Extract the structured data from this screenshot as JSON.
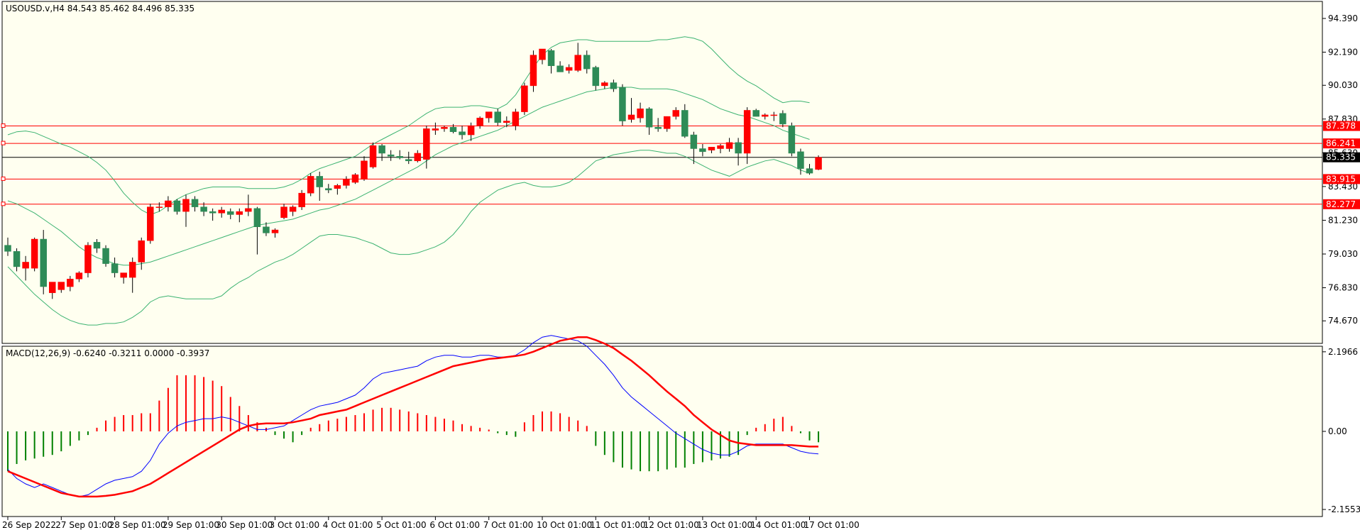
{
  "chart_data": [
    {
      "type": "candlestick",
      "title": "USOUSD.v,H4  84.543 85.462 84.496 85.335",
      "ylim": [
        73.2,
        95.5
      ],
      "y_ticks": [
        "94.390",
        "92.190",
        "90.030",
        "87.830",
        "85.630",
        "83.430",
        "81.230",
        "79.030",
        "76.830",
        "74.670"
      ],
      "y_tick_values": [
        94.39,
        92.19,
        90.03,
        87.83,
        85.63,
        83.43,
        81.23,
        79.03,
        76.83,
        74.67
      ],
      "x_labels": [
        "26 Sep 2022",
        "27 Sep 01:00",
        "28 Sep 01:00",
        "29 Sep 01:00",
        "30 Sep 01:00",
        "3 Oct 01:00",
        "4 Oct 01:00",
        "5 Oct 01:00",
        "6 Oct 01:00",
        "7 Oct 01:00",
        "10 Oct 01:00",
        "11 Oct 01:00",
        "12 Oct 01:00",
        "13 Oct 01:00",
        "14 Oct 01:00",
        "17 Oct 01:00"
      ],
      "x_label_index": [
        0,
        6,
        12,
        18,
        24,
        30,
        36,
        42,
        48,
        54,
        60,
        66,
        72,
        78,
        84,
        90
      ],
      "candles": [
        [
          79.6,
          80.1,
          78.9,
          79.2
        ],
        [
          79.2,
          79.4,
          77.9,
          78.2
        ],
        [
          78.1,
          78.9,
          77.3,
          78.5
        ],
        [
          78.1,
          80.1,
          77.9,
          80.0
        ],
        [
          80.0,
          80.6,
          76.4,
          76.9
        ],
        [
          76.5,
          77.1,
          76.1,
          77.2
        ],
        [
          76.7,
          77.2,
          76.5,
          77.2
        ],
        [
          76.9,
          77.6,
          76.6,
          77.4
        ],
        [
          77.4,
          77.9,
          77.2,
          77.8
        ],
        [
          77.8,
          79.8,
          77.5,
          79.6
        ],
        [
          79.8,
          80.0,
          79.1,
          79.4
        ],
        [
          79.4,
          79.6,
          78.2,
          78.4
        ],
        [
          78.4,
          78.8,
          77.5,
          77.8
        ],
        [
          77.5,
          77.8,
          77.1,
          77.8
        ],
        [
          77.5,
          78.8,
          76.5,
          78.5
        ],
        [
          78.5,
          80.1,
          78.0,
          79.9
        ],
        [
          79.9,
          82.3,
          79.7,
          82.1
        ],
        [
          82.1,
          82.4,
          81.8,
          82.1
        ],
        [
          82.1,
          82.8,
          81.8,
          82.5
        ],
        [
          82.5,
          82.6,
          81.6,
          81.8
        ],
        [
          81.8,
          82.9,
          80.8,
          82.6
        ],
        [
          82.6,
          82.8,
          81.8,
          82.1
        ],
        [
          82.1,
          82.4,
          81.5,
          81.8
        ],
        [
          81.8,
          82.0,
          81.2,
          81.7
        ],
        [
          81.7,
          82.1,
          81.4,
          81.9
        ],
        [
          81.8,
          82.0,
          81.3,
          81.6
        ],
        [
          81.6,
          82.0,
          81.1,
          81.8
        ],
        [
          81.8,
          82.9,
          81.5,
          82.0
        ],
        [
          82.0,
          82.1,
          79.0,
          80.8
        ],
        [
          80.8,
          81.1,
          80.2,
          80.4
        ],
        [
          80.4,
          80.7,
          80.1,
          80.6
        ],
        [
          81.4,
          82.3,
          81.3,
          82.1
        ],
        [
          81.8,
          82.2,
          81.5,
          82.1
        ],
        [
          82.1,
          83.2,
          81.9,
          83.0
        ],
        [
          83.0,
          84.3,
          82.8,
          84.1
        ],
        [
          84.1,
          84.4,
          82.5,
          83.4
        ],
        [
          83.3,
          83.6,
          83.0,
          83.2
        ],
        [
          83.3,
          83.6,
          82.9,
          83.5
        ],
        [
          83.5,
          84.1,
          83.3,
          83.9
        ],
        [
          83.7,
          84.3,
          83.6,
          84.2
        ],
        [
          83.9,
          85.4,
          83.8,
          85.1
        ],
        [
          84.7,
          86.3,
          84.6,
          86.1
        ],
        [
          86.1,
          86.2,
          85.1,
          85.6
        ],
        [
          85.5,
          85.8,
          85.1,
          85.4
        ],
        [
          85.4,
          85.8,
          85.2,
          85.3
        ],
        [
          85.2,
          85.7,
          84.9,
          85.1
        ],
        [
          85.1,
          85.8,
          85.0,
          85.6
        ],
        [
          85.2,
          87.4,
          84.6,
          87.2
        ],
        [
          87.1,
          87.6,
          86.8,
          87.2
        ],
        [
          87.2,
          87.4,
          87.0,
          87.3
        ],
        [
          87.3,
          87.5,
          86.9,
          87.0
        ],
        [
          87.0,
          87.4,
          86.5,
          86.8
        ],
        [
          86.8,
          87.6,
          86.4,
          87.4
        ],
        [
          87.4,
          88.0,
          87.2,
          87.9
        ],
        [
          87.9,
          88.2,
          87.6,
          88.3
        ],
        [
          88.3,
          88.5,
          87.4,
          87.6
        ],
        [
          87.6,
          88.0,
          87.3,
          87.7
        ],
        [
          87.4,
          88.5,
          87.1,
          88.3
        ],
        [
          88.3,
          90.2,
          88.1,
          90.0
        ],
        [
          90.0,
          92.3,
          89.6,
          92.0
        ],
        [
          91.7,
          92.3,
          91.4,
          92.4
        ],
        [
          92.3,
          92.4,
          90.8,
          91.3
        ],
        [
          91.3,
          91.6,
          90.9,
          90.9
        ],
        [
          91.0,
          91.4,
          90.8,
          91.2
        ],
        [
          91.0,
          92.8,
          90.9,
          92.0
        ],
        [
          92.0,
          92.3,
          90.8,
          91.1
        ],
        [
          91.2,
          91.3,
          89.7,
          90.0
        ],
        [
          90.0,
          90.3,
          89.8,
          90.2
        ],
        [
          90.2,
          90.4,
          89.6,
          89.8
        ],
        [
          89.9,
          90.1,
          87.4,
          87.7
        ],
        [
          87.8,
          89.2,
          87.6,
          88.1
        ],
        [
          87.9,
          88.9,
          87.6,
          88.5
        ],
        [
          88.5,
          88.6,
          86.8,
          87.3
        ],
        [
          87.3,
          87.9,
          87.0,
          87.2
        ],
        [
          87.2,
          88.0,
          87.0,
          88.0
        ],
        [
          88.0,
          88.6,
          87.8,
          88.4
        ],
        [
          88.4,
          88.8,
          86.6,
          86.7
        ],
        [
          86.8,
          87.0,
          84.9,
          85.9
        ],
        [
          85.9,
          86.2,
          85.4,
          85.7
        ],
        [
          85.8,
          86.0,
          85.6,
          86.0
        ],
        [
          85.9,
          86.2,
          85.6,
          86.1
        ],
        [
          85.9,
          86.6,
          85.7,
          86.3
        ],
        [
          86.3,
          86.6,
          84.8,
          85.6
        ],
        [
          85.6,
          88.6,
          84.9,
          88.4
        ],
        [
          88.4,
          88.5,
          88.0,
          88.0
        ],
        [
          88.0,
          88.2,
          87.8,
          88.1
        ],
        [
          88.1,
          88.3,
          87.7,
          88.1
        ],
        [
          88.2,
          88.4,
          87.3,
          87.5
        ],
        [
          87.4,
          87.6,
          85.4,
          85.6
        ],
        [
          85.7,
          85.9,
          84.2,
          84.6
        ],
        [
          84.6,
          84.9,
          84.2,
          84.3
        ],
        [
          84.543,
          85.462,
          84.496,
          85.335
        ]
      ],
      "bollinger_upper": [
        86.8,
        87.0,
        87.05,
        86.95,
        86.7,
        86.45,
        86.2,
        86.0,
        85.7,
        85.4,
        85.0,
        84.5,
        83.8,
        83.0,
        82.4,
        81.9,
        81.6,
        81.8,
        82.2,
        82.6,
        82.9,
        83.1,
        83.3,
        83.4,
        83.4,
        83.4,
        83.4,
        83.3,
        83.3,
        83.3,
        83.3,
        83.4,
        83.6,
        83.9,
        84.3,
        84.6,
        84.8,
        85.0,
        85.2,
        85.4,
        85.8,
        86.2,
        86.5,
        86.8,
        87.1,
        87.4,
        87.8,
        88.2,
        88.5,
        88.6,
        88.6,
        88.6,
        88.7,
        88.7,
        88.6,
        88.5,
        88.8,
        89.4,
        90.3,
        91.2,
        92.0,
        92.5,
        92.8,
        92.9,
        93.0,
        93.0,
        92.9,
        92.9,
        92.9,
        92.9,
        92.9,
        92.9,
        92.9,
        93.0,
        93.0,
        93.1,
        93.2,
        93.1,
        92.9,
        92.4,
        91.8,
        91.2,
        90.7,
        90.3,
        90.0,
        89.6,
        89.2,
        88.9,
        89.0,
        89.0,
        88.9
      ],
      "bollinger_middle": [
        82.5,
        82.3,
        82.0,
        81.7,
        81.3,
        80.9,
        80.5,
        80.0,
        79.5,
        79.1,
        78.8,
        78.6,
        78.4,
        78.3,
        78.3,
        78.4,
        78.5,
        78.7,
        78.9,
        79.1,
        79.3,
        79.5,
        79.7,
        79.9,
        80.1,
        80.3,
        80.5,
        80.7,
        80.9,
        81.0,
        81.1,
        81.2,
        81.3,
        81.5,
        81.7,
        81.9,
        82.0,
        82.2,
        82.4,
        82.6,
        82.9,
        83.2,
        83.5,
        83.8,
        84.1,
        84.4,
        84.7,
        85.1,
        85.5,
        85.8,
        86.1,
        86.3,
        86.5,
        86.7,
        86.9,
        87.1,
        87.4,
        87.7,
        88.0,
        88.3,
        88.6,
        88.8,
        89.0,
        89.2,
        89.4,
        89.6,
        89.7,
        89.8,
        89.9,
        89.9,
        89.9,
        89.8,
        89.8,
        89.8,
        89.8,
        89.7,
        89.5,
        89.3,
        89.1,
        88.8,
        88.5,
        88.3,
        88.1,
        88.0,
        87.8,
        87.6,
        87.4,
        87.1,
        86.9,
        86.7,
        86.5
      ],
      "bollinger_lower": [
        78.2,
        77.6,
        77.0,
        76.4,
        75.9,
        75.4,
        75.0,
        74.7,
        74.5,
        74.4,
        74.4,
        74.5,
        74.5,
        74.6,
        74.9,
        75.3,
        75.9,
        76.2,
        76.3,
        76.2,
        76.1,
        76.1,
        76.1,
        76.1,
        76.3,
        76.8,
        77.2,
        77.5,
        77.9,
        78.2,
        78.5,
        78.7,
        79.0,
        79.4,
        79.8,
        80.2,
        80.3,
        80.3,
        80.2,
        80.1,
        79.9,
        79.7,
        79.4,
        79.1,
        79.0,
        79.0,
        79.1,
        79.3,
        79.5,
        79.8,
        80.3,
        81.0,
        81.8,
        82.4,
        82.8,
        83.2,
        83.4,
        83.6,
        83.7,
        83.5,
        83.4,
        83.4,
        83.5,
        83.7,
        84.1,
        84.6,
        85.1,
        85.3,
        85.5,
        85.6,
        85.7,
        85.8,
        85.8,
        85.7,
        85.6,
        85.6,
        85.4,
        85.1,
        84.8,
        84.5,
        84.3,
        84.1,
        84.4,
        84.7,
        84.9,
        85.1,
        85.2,
        85.0,
        84.8,
        84.5,
        84.3
      ],
      "horizontal_lines": [
        {
          "label": "87.378",
          "value": 87.378,
          "color": "#ff0000"
        },
        {
          "label": "86.241",
          "value": 86.241,
          "color": "#ff0000"
        },
        {
          "label": "83.915",
          "value": 83.915,
          "color": "#ff0000"
        },
        {
          "label": "82.277",
          "value": 82.277,
          "color": "#ff0000"
        },
        {
          "label": "85.335",
          "value": 85.335,
          "color": "#000000"
        }
      ],
      "colors": {
        "background": "#fffff0",
        "bull": "#ff0000",
        "bear": "#2e8b57",
        "bands": "#3cb371"
      }
    },
    {
      "type": "macd",
      "title": "MACD(12,26,9) -0.6240 -0.3211 0.0000 -0.3937",
      "ylim": [
        -2.35,
        2.35
      ],
      "y_ticks": [
        "2.1966",
        "0.00",
        "-2.1553"
      ],
      "y_tick_values": [
        2.1966,
        0.0,
        -2.1553
      ],
      "hist": [
        -1.1,
        -0.9,
        -0.8,
        -0.75,
        -0.7,
        -0.65,
        -0.55,
        -0.4,
        -0.25,
        -0.1,
        0.1,
        0.3,
        0.4,
        0.45,
        0.45,
        0.5,
        0.5,
        0.85,
        1.2,
        1.55,
        1.55,
        1.55,
        1.5,
        1.4,
        1.25,
        0.95,
        0.7,
        0.45,
        0.25,
        0.1,
        -0.1,
        -0.2,
        -0.3,
        -0.1,
        0.1,
        0.2,
        0.3,
        0.35,
        0.4,
        0.45,
        0.5,
        0.6,
        0.65,
        0.65,
        0.6,
        0.55,
        0.5,
        0.45,
        0.4,
        0.35,
        0.3,
        0.2,
        0.15,
        0.1,
        0.05,
        -0.05,
        -0.1,
        -0.15,
        0.25,
        0.45,
        0.55,
        0.55,
        0.5,
        0.4,
        0.3,
        0.15,
        -0.4,
        -0.65,
        -0.85,
        -1.0,
        -1.05,
        -1.1,
        -1.1,
        -1.1,
        -1.05,
        -1.0,
        -1.0,
        -0.9,
        -0.85,
        -0.8,
        -0.75,
        -0.7,
        -0.65,
        -0.1,
        0.1,
        0.2,
        0.35,
        0.4,
        0.15,
        -0.05,
        -0.25,
        -0.3
      ],
      "macd": [
        -1.05,
        -1.3,
        -1.45,
        -1.55,
        -1.45,
        -1.55,
        -1.65,
        -1.75,
        -1.8,
        -1.75,
        -1.6,
        -1.45,
        -1.35,
        -1.3,
        -1.25,
        -1.1,
        -0.8,
        -0.35,
        -0.05,
        0.15,
        0.25,
        0.3,
        0.35,
        0.35,
        0.4,
        0.35,
        0.25,
        0.15,
        0.05,
        0.05,
        0.1,
        0.15,
        0.3,
        0.45,
        0.6,
        0.7,
        0.75,
        0.8,
        0.9,
        1.0,
        1.2,
        1.45,
        1.6,
        1.65,
        1.7,
        1.75,
        1.8,
        1.95,
        2.05,
        2.1,
        2.1,
        2.05,
        2.05,
        2.1,
        2.1,
        2.05,
        2.05,
        2.1,
        2.25,
        2.45,
        2.6,
        2.65,
        2.6,
        2.55,
        2.5,
        2.35,
        2.1,
        1.85,
        1.55,
        1.2,
        0.95,
        0.75,
        0.55,
        0.35,
        0.15,
        -0.05,
        -0.2,
        -0.35,
        -0.5,
        -0.6,
        -0.65,
        -0.65,
        -0.55,
        -0.4,
        -0.35,
        -0.35,
        -0.35,
        -0.35,
        -0.45,
        -0.55,
        -0.6,
        -0.62
      ],
      "signal": [
        -1.1,
        -1.2,
        -1.3,
        -1.4,
        -1.5,
        -1.6,
        -1.7,
        -1.75,
        -1.8,
        -1.8,
        -1.8,
        -1.78,
        -1.75,
        -1.7,
        -1.65,
        -1.55,
        -1.45,
        -1.3,
        -1.15,
        -1.0,
        -0.85,
        -0.7,
        -0.55,
        -0.4,
        -0.25,
        -0.1,
        0.05,
        0.15,
        0.2,
        0.22,
        0.22,
        0.22,
        0.25,
        0.3,
        0.35,
        0.45,
        0.5,
        0.55,
        0.6,
        0.7,
        0.8,
        0.9,
        1.0,
        1.1,
        1.2,
        1.3,
        1.4,
        1.5,
        1.6,
        1.7,
        1.8,
        1.85,
        1.9,
        1.95,
        2.0,
        2.02,
        2.05,
        2.08,
        2.12,
        2.2,
        2.3,
        2.4,
        2.5,
        2.55,
        2.6,
        2.6,
        2.52,
        2.42,
        2.3,
        2.12,
        1.95,
        1.75,
        1.55,
        1.32,
        1.1,
        0.9,
        0.7,
        0.45,
        0.25,
        0.05,
        -0.1,
        -0.25,
        -0.32,
        -0.35,
        -0.38,
        -0.38,
        -0.38,
        -0.38,
        -0.38,
        -0.4,
        -0.42,
        -0.42
      ],
      "colors": {
        "hist_pos": "#ff0000",
        "hist_neg": "#008000",
        "macd": "#0000ff",
        "signal": "#ff0000"
      }
    }
  ]
}
